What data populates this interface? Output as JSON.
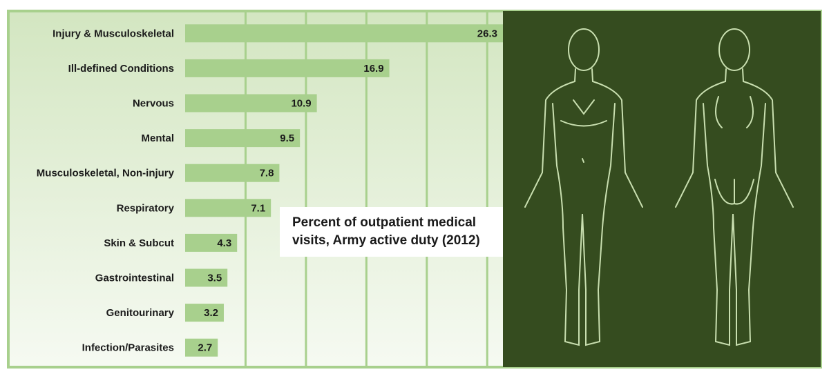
{
  "chart_data": {
    "type": "barh",
    "title": "Percent of outpatient medical visits, Army active duty (2012)",
    "categories": [
      "Injury & Musculoskeletal",
      "Ill-defined Conditions",
      "Nervous",
      "Mental",
      "Musculoskeletal, Non-injury",
      "Respiratory",
      "Skin & Subcut",
      "Gastrointestinal",
      "Genitourinary",
      "Infection/Parasites"
    ],
    "values": [
      26.3,
      16.9,
      10.9,
      9.5,
      7.8,
      7.1,
      4.3,
      3.5,
      3.2,
      2.7
    ],
    "color": "#a8d08d",
    "xlim": [
      0,
      26.3
    ],
    "xticks": [
      5,
      10,
      15,
      20,
      25
    ],
    "grid": true
  }
}
